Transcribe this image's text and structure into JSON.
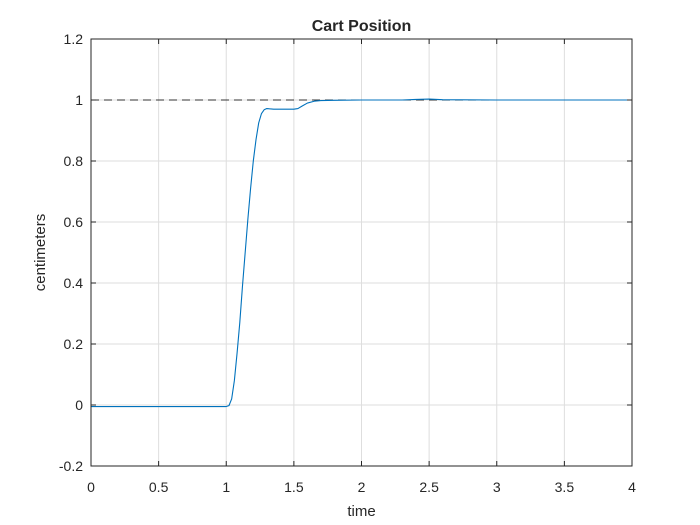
{
  "chart_data": {
    "type": "line",
    "title": "Cart Position",
    "xlabel": "time",
    "ylabel": "centimeters",
    "xlim": [
      0,
      4
    ],
    "ylim": [
      -0.2,
      1.2
    ],
    "xticks": [
      0,
      0.5,
      1,
      1.5,
      2,
      2.5,
      3,
      3.5,
      4
    ],
    "xtick_labels": [
      "0",
      "0.5",
      "1",
      "1.5",
      "2",
      "2.5",
      "3",
      "3.5",
      "4"
    ],
    "yticks": [
      -0.2,
      0,
      0.2,
      0.4,
      0.6,
      0.8,
      1,
      1.2
    ],
    "ytick_labels": [
      "-0.2",
      "0",
      "0.2",
      "0.4",
      "0.6",
      "0.8",
      "1",
      "1.2"
    ],
    "grid": true,
    "series": [
      {
        "color": "#0072BD",
        "style": "solid",
        "x": [
          0,
          0.5,
          1.0,
          1.02,
          1.04,
          1.06,
          1.08,
          1.1,
          1.12,
          1.14,
          1.16,
          1.18,
          1.2,
          1.22,
          1.24,
          1.26,
          1.28,
          1.3,
          1.32,
          1.35,
          1.4,
          1.45,
          1.5,
          1.53,
          1.56,
          1.6,
          1.65,
          1.7,
          1.8,
          2.0,
          2.3,
          2.4,
          2.5,
          2.6,
          3.0,
          3.5,
          4.0
        ],
        "y": [
          -0.005,
          -0.005,
          -0.005,
          -0.002,
          0.02,
          0.08,
          0.17,
          0.27,
          0.39,
          0.5,
          0.61,
          0.71,
          0.8,
          0.87,
          0.925,
          0.955,
          0.968,
          0.972,
          0.971,
          0.97,
          0.97,
          0.97,
          0.97,
          0.972,
          0.98,
          0.99,
          0.996,
          0.998,
          0.999,
          1.0,
          1.0,
          1.002,
          1.003,
          1.001,
          1.0,
          1.0,
          1.0
        ]
      },
      {
        "color": "#333333",
        "style": "dashed",
        "x": [
          0,
          4
        ],
        "y": [
          1,
          1
        ]
      }
    ]
  }
}
